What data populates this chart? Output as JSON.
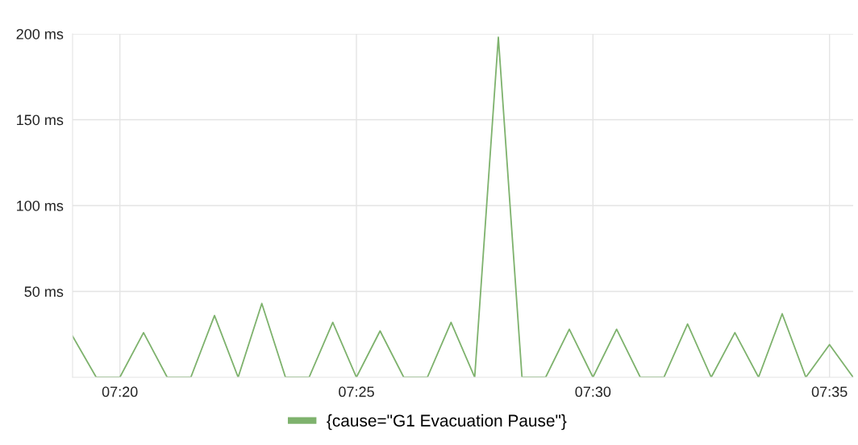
{
  "chart_data": {
    "type": "line",
    "x": [
      7.316667,
      7.325,
      7.333333,
      7.341667,
      7.35,
      7.358333,
      7.366667,
      7.375,
      7.383333,
      7.391667,
      7.4,
      7.408333,
      7.416667,
      7.425,
      7.433333,
      7.441667,
      7.45,
      7.458333,
      7.466667,
      7.475,
      7.483333,
      7.491667,
      7.5,
      7.508333,
      7.516667,
      7.525,
      7.533333,
      7.541667,
      7.55,
      7.558333,
      7.566667,
      7.575,
      7.583333,
      7.591667
    ],
    "series": [
      {
        "name": "{cause=\"G1 Evacuation Pause\"}",
        "color": "#7eb26d",
        "values": [
          24,
          0,
          0,
          26,
          0,
          0,
          36,
          0,
          43,
          0,
          0,
          32,
          0,
          27,
          0,
          0,
          32,
          0,
          198,
          0,
          0,
          28,
          0,
          28,
          0,
          0,
          31,
          0,
          26,
          0,
          37,
          0,
          19,
          0
        ]
      }
    ],
    "xlim": [
      7.316667,
      7.591667
    ],
    "xticks": [
      {
        "value": 7.333333,
        "label": "07:20"
      },
      {
        "value": 7.416667,
        "label": "07:25"
      },
      {
        "value": 7.5,
        "label": "07:30"
      },
      {
        "value": 7.583333,
        "label": "07:35"
      }
    ],
    "ylim": [
      0,
      200
    ],
    "yticks": [
      {
        "value": 50,
        "label": "50 ms"
      },
      {
        "value": 100,
        "label": "100 ms"
      },
      {
        "value": 150,
        "label": "150 ms"
      },
      {
        "value": 200,
        "label": "200 ms"
      }
    ],
    "grid": true,
    "legend": "bottom",
    "marker": "none",
    "line_style": "solid"
  }
}
